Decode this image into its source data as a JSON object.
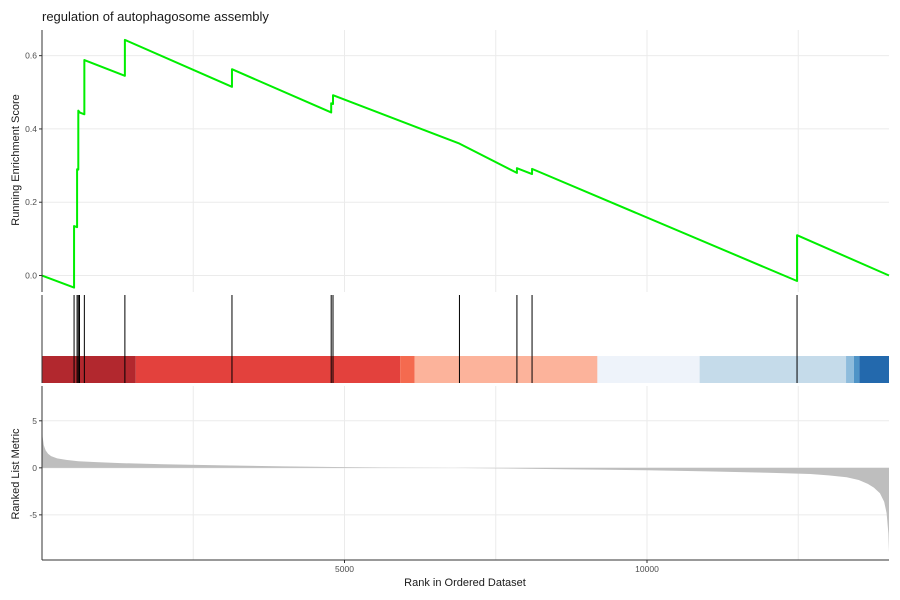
{
  "chart_data": {
    "type": "line",
    "title": "regulation of autophagosome assembly",
    "xlabel": "Rank in Ordered Dataset",
    "xlim": [
      0,
      14000
    ],
    "x_ticks": [
      {
        "value": 5000,
        "label": "5000"
      },
      {
        "value": 10000,
        "label": "10000"
      }
    ],
    "x_grid_minor": [
      2500,
      7500,
      12500
    ],
    "panels": [
      {
        "name": "running-score",
        "ylabel": "Running Enrichment Score",
        "ylim": [
          -0.045,
          0.67
        ],
        "y_ticks": [
          {
            "value": 0.0,
            "label": "0.0"
          },
          {
            "value": 0.2,
            "label": "0.2"
          },
          {
            "value": 0.4,
            "label": "0.4"
          },
          {
            "value": 0.6,
            "label": "0.6"
          }
        ],
        "line_color": "#00ee00",
        "series": [
          {
            "x": [
              0,
              530,
              530,
              580,
              580,
              600,
              600,
              620,
              620,
              700,
              700,
              1370,
              1370,
              3140,
              3140,
              4780,
              4780,
              4810,
              4810,
              6900,
              6900,
              7850,
              7850,
              8100,
              8100,
              12480,
              12480,
              14000
            ],
            "y": [
              0.0,
              -0.033,
              0.135,
              0.132,
              0.29,
              0.289,
              0.45,
              0.446,
              0.445,
              0.44,
              0.588,
              0.545,
              0.643,
              0.515,
              0.563,
              0.445,
              0.47,
              0.468,
              0.492,
              0.36,
              0.36,
              0.28,
              0.293,
              0.277,
              0.291,
              -0.015,
              0.11,
              0.0
            ]
          }
        ]
      },
      {
        "name": "hit-ticks",
        "hits": [
          530,
          580,
          600,
          620,
          700,
          1370,
          3140,
          4780,
          4810,
          6900,
          7850,
          8100,
          12480
        ],
        "color_bands": [
          {
            "x0": 0,
            "x1": 1550,
            "color": "#b2282e"
          },
          {
            "x0": 1550,
            "x1": 5920,
            "color": "#e3413d"
          },
          {
            "x0": 5920,
            "x1": 6160,
            "color": "#f46a4f"
          },
          {
            "x0": 6160,
            "x1": 9180,
            "color": "#fcb39b"
          },
          {
            "x0": 9180,
            "x1": 10870,
            "color": "#eef3fa"
          },
          {
            "x0": 10870,
            "x1": 13290,
            "color": "#c5dbea"
          },
          {
            "x0": 13290,
            "x1": 13420,
            "color": "#8ebcdc"
          },
          {
            "x0": 13420,
            "x1": 13510,
            "color": "#4f94c7"
          },
          {
            "x0": 13510,
            "x1": 14000,
            "color": "#2369ad"
          }
        ]
      },
      {
        "name": "ranked-metric",
        "ylabel": "Ranked List Metric",
        "ylim": [
          -9.8,
          8.7
        ],
        "y_ticks": [
          {
            "value": 5,
            "label": "5"
          },
          {
            "value": 0,
            "label": "0"
          },
          {
            "value": -5,
            "label": "-5"
          }
        ],
        "fill_color": "#bebebe",
        "series": [
          {
            "x": [
              0,
              10,
              30,
              60,
              100,
              150,
              250,
              400,
              600,
              900,
              1300,
              2000,
              3000,
              4000,
              5000,
              6000,
              6800,
              7000,
              8000,
              9000,
              10000,
              11000,
              12000,
              12700,
              13000,
              13300,
              13500,
              13650,
              13750,
              13850,
              13920,
              13960,
              13990,
              14000
            ],
            "y": [
              4.9,
              3.3,
              2.4,
              1.85,
              1.5,
              1.25,
              1.0,
              0.85,
              0.7,
              0.6,
              0.5,
              0.38,
              0.26,
              0.15,
              0.07,
              0.02,
              0.0,
              -0.02,
              -0.1,
              -0.18,
              -0.26,
              -0.38,
              -0.52,
              -0.65,
              -0.8,
              -1.0,
              -1.3,
              -1.7,
              -2.1,
              -2.7,
              -3.6,
              -4.8,
              -7.0,
              -9.0
            ]
          }
        ]
      }
    ]
  }
}
